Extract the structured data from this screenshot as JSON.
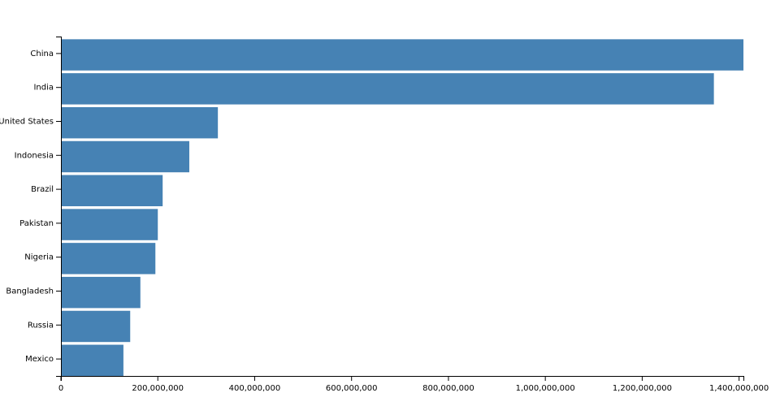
{
  "chart_data": {
    "type": "bar",
    "orientation": "horizontal",
    "categories": [
      "China",
      "India",
      "United States",
      "Indonesia",
      "Brazil",
      "Pakistan",
      "Nigeria",
      "Bangladesh",
      "Russia",
      "Mexico"
    ],
    "values": [
      1409000000,
      1348000000,
      324000000,
      265000000,
      210000000,
      200000000,
      195000000,
      164000000,
      143000000,
      129000000
    ],
    "color": "#4682b4",
    "xlim": [
      0,
      1409000000
    ],
    "xticks": [
      0,
      {
        "value": 200000000,
        "label": "200,000,000"
      },
      {
        "value": 400000000,
        "label": "400,000,000"
      },
      {
        "value": 600000000,
        "label": "600,000,000"
      },
      {
        "value": 800000000,
        "label": "800,000,000"
      },
      {
        "value": 1000000000,
        "label": "1,000,000,000"
      },
      {
        "value": 1200000000,
        "label": "1,200,000,000"
      },
      {
        "value": 1400000000,
        "label": "1,400,000,000"
      }
    ],
    "grid": false
  }
}
